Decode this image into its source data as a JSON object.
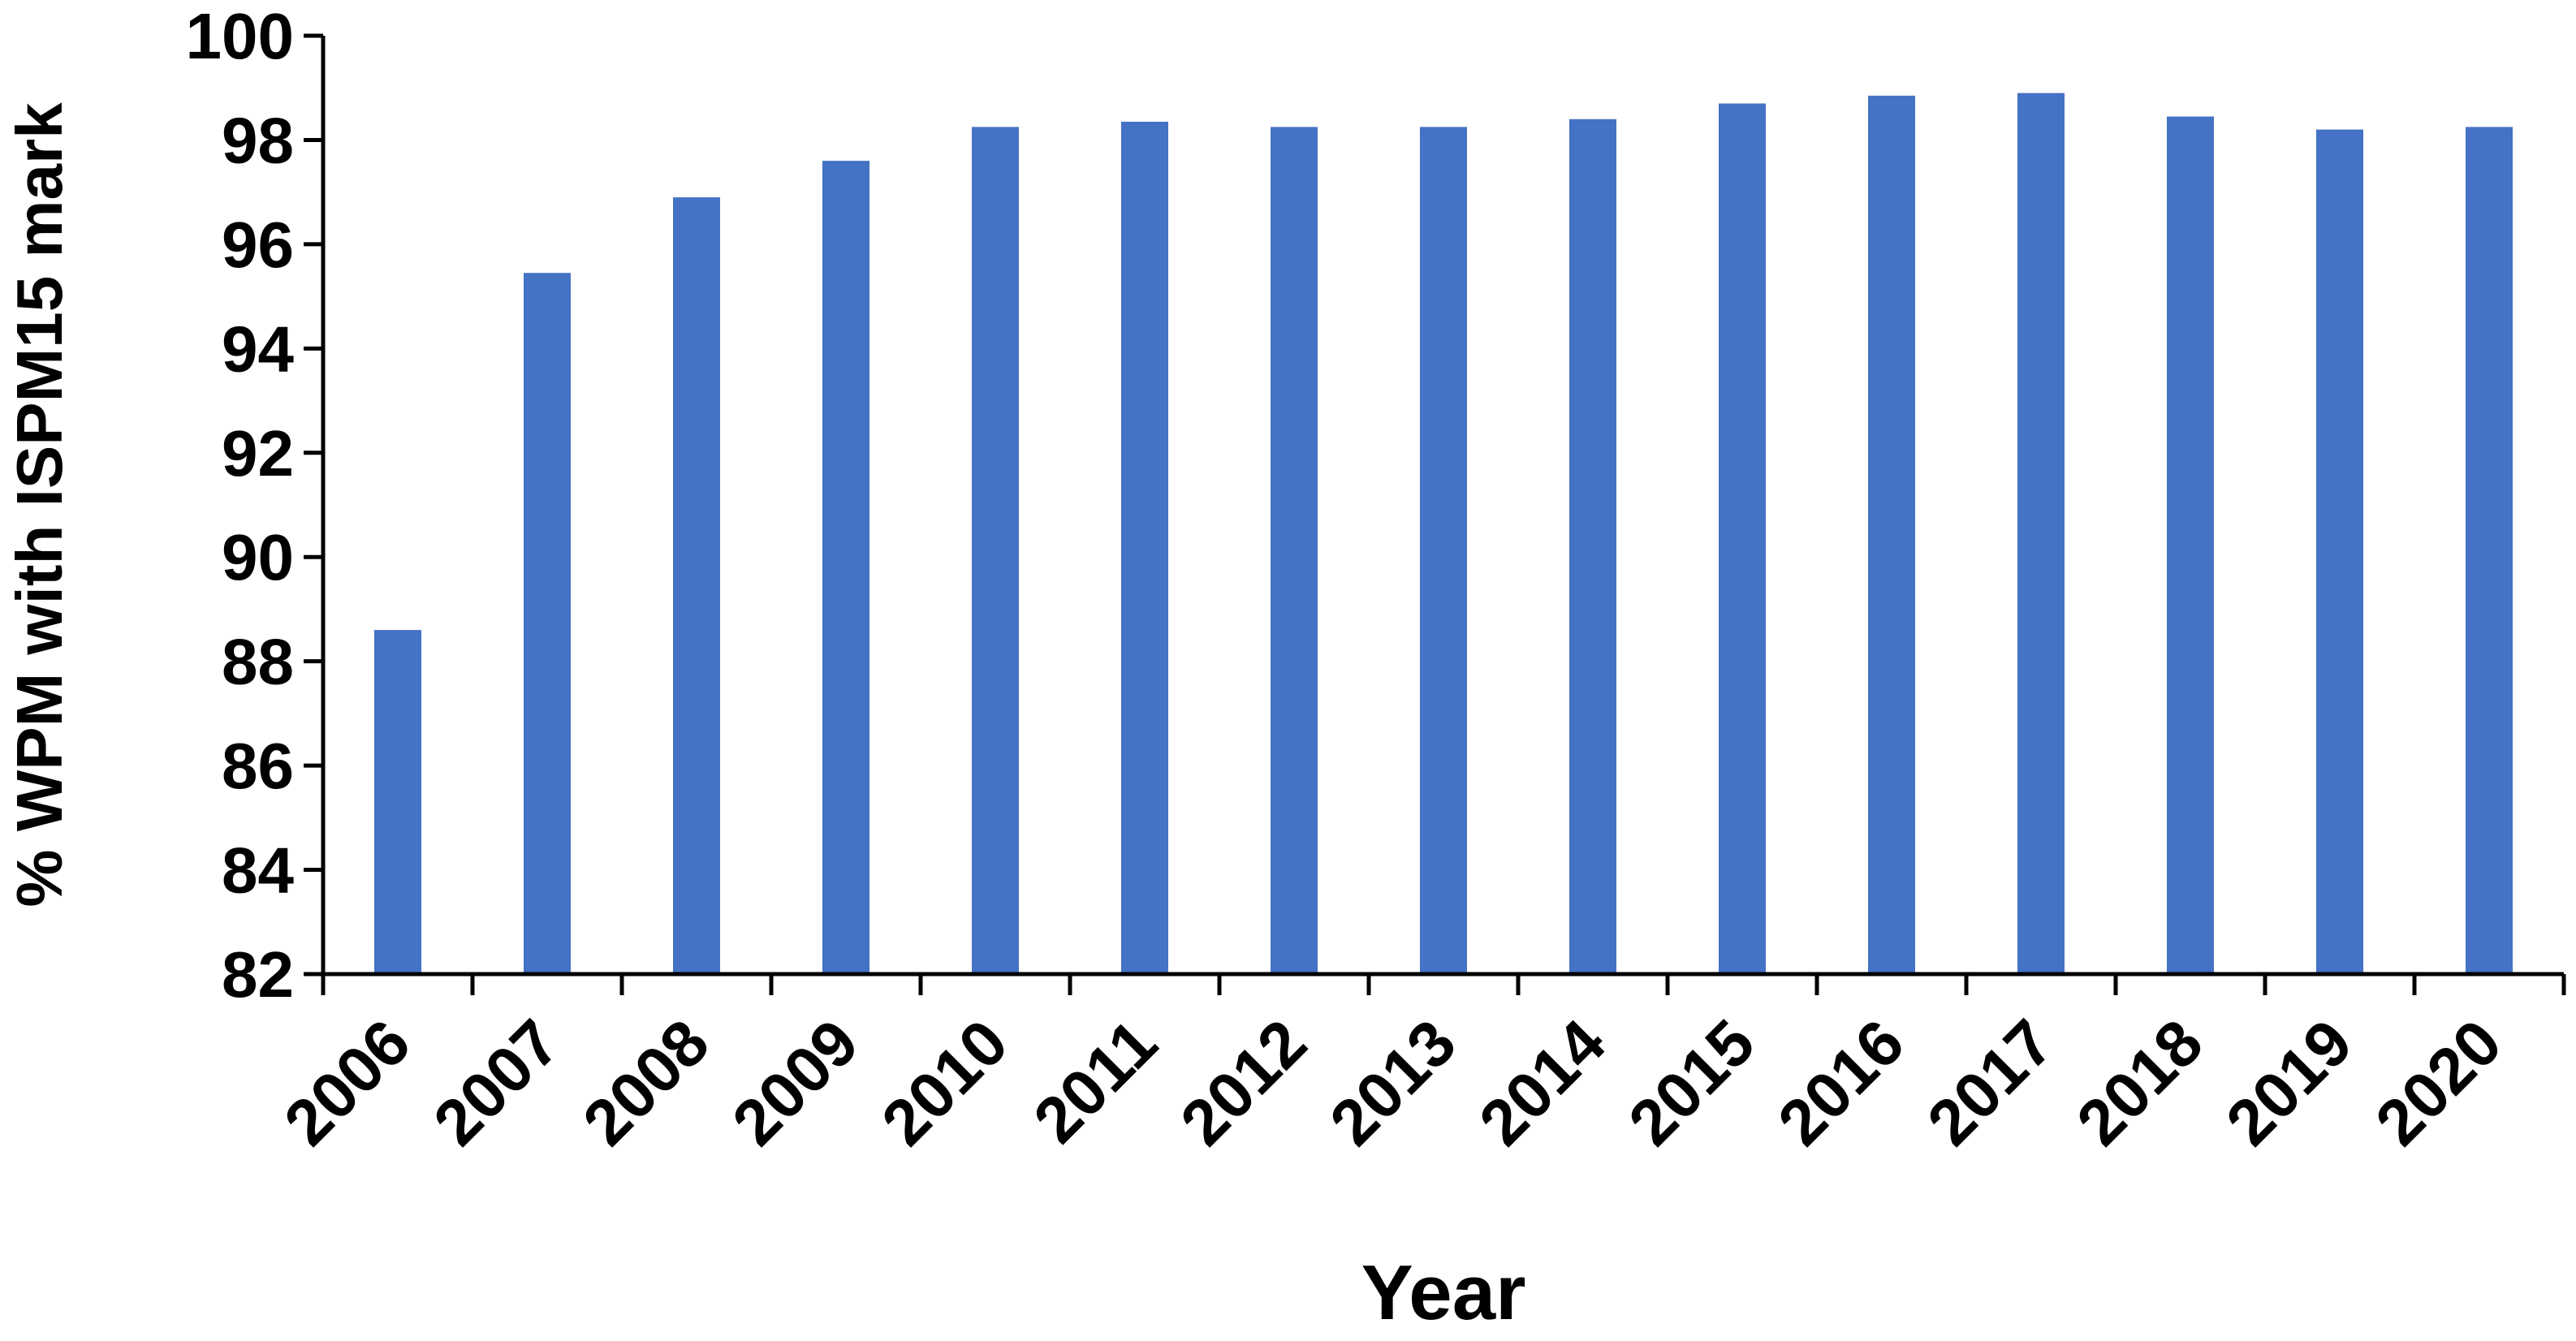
{
  "chart_data": {
    "type": "bar",
    "title": "",
    "xlabel": "Year",
    "ylabel": "% WPM with ISPM15 mark",
    "categories": [
      "2006",
      "2007",
      "2008",
      "2009",
      "2010",
      "2011",
      "2012",
      "2013",
      "2014",
      "2015",
      "2016",
      "2017",
      "2018",
      "2019",
      "2020"
    ],
    "series": [
      {
        "values": [
          88.6,
          95.45,
          96.9,
          97.6,
          98.25,
          98.35,
          98.25,
          98.25,
          98.4,
          98.7,
          98.85,
          98.9,
          98.45,
          98.2,
          98.25
        ]
      }
    ],
    "ylim": [
      82,
      100
    ],
    "yticks": [
      82,
      84,
      86,
      88,
      90,
      92,
      94,
      96,
      98,
      100
    ],
    "grid": false,
    "legend": "none",
    "bar_color": "#4472C4"
  }
}
